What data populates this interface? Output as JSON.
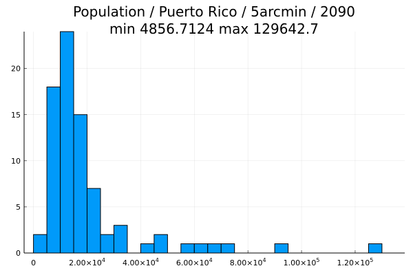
{
  "chart_data": {
    "type": "bar",
    "title_line1": "Population / Puerto Rico / 5arcmin / 2090",
    "title_line2": "min 4856.7124  max 129642.7",
    "xlabel": "",
    "ylabel": "",
    "bin_width": 5000,
    "bins": [
      {
        "start": 0,
        "end": 5000,
        "count": 2
      },
      {
        "start": 5000,
        "end": 10000,
        "count": 18
      },
      {
        "start": 10000,
        "end": 15000,
        "count": 24
      },
      {
        "start": 15000,
        "end": 20000,
        "count": 15
      },
      {
        "start": 20000,
        "end": 25000,
        "count": 7
      },
      {
        "start": 25000,
        "end": 30000,
        "count": 2
      },
      {
        "start": 30000,
        "end": 35000,
        "count": 3
      },
      {
        "start": 40000,
        "end": 45000,
        "count": 1
      },
      {
        "start": 45000,
        "end": 50000,
        "count": 2
      },
      {
        "start": 55000,
        "end": 60000,
        "count": 1
      },
      {
        "start": 60000,
        "end": 65000,
        "count": 1
      },
      {
        "start": 65000,
        "end": 70000,
        "count": 1
      },
      {
        "start": 70000,
        "end": 75000,
        "count": 1
      },
      {
        "start": 90000,
        "end": 95000,
        "count": 1
      },
      {
        "start": 125000,
        "end": 130000,
        "count": 1
      }
    ],
    "xlim": [
      -3500,
      138500
    ],
    "ylim": [
      0,
      24
    ],
    "x_ticks": [
      {
        "value": 0,
        "mantissa": "0",
        "exp": ""
      },
      {
        "value": 20000,
        "mantissa": "2.00×10",
        "exp": "4"
      },
      {
        "value": 40000,
        "mantissa": "4.00×10",
        "exp": "4"
      },
      {
        "value": 60000,
        "mantissa": "6.00×10",
        "exp": "4"
      },
      {
        "value": 80000,
        "mantissa": "8.00×10",
        "exp": "4"
      },
      {
        "value": 100000,
        "mantissa": "1.00×10",
        "exp": "5"
      },
      {
        "value": 120000,
        "mantissa": "1.20×10",
        "exp": "5"
      }
    ],
    "y_ticks": [
      {
        "value": 0,
        "label": "0"
      },
      {
        "value": 5,
        "label": "5"
      },
      {
        "value": 10,
        "label": "10"
      },
      {
        "value": 15,
        "label": "15"
      },
      {
        "value": 20,
        "label": "20"
      }
    ],
    "grid": true,
    "bar_color": "#009AFA",
    "legend": "none"
  }
}
